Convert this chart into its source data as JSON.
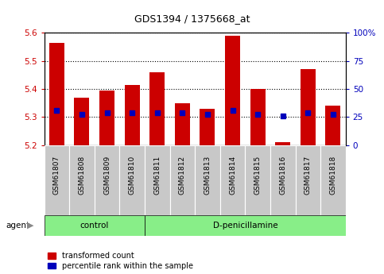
{
  "title": "GDS1394 / 1375668_at",
  "categories": [
    "GSM61807",
    "GSM61808",
    "GSM61809",
    "GSM61810",
    "GSM61811",
    "GSM61812",
    "GSM61813",
    "GSM61814",
    "GSM61815",
    "GSM61816",
    "GSM61817",
    "GSM61818"
  ],
  "red_values": [
    5.565,
    5.37,
    5.395,
    5.415,
    5.46,
    5.35,
    5.33,
    5.59,
    5.4,
    5.21,
    5.47,
    5.34
  ],
  "blue_values": [
    5.325,
    5.31,
    5.315,
    5.315,
    5.315,
    5.315,
    5.31,
    5.325,
    5.31,
    5.305,
    5.315,
    5.31
  ],
  "ymin": 5.2,
  "ymax": 5.6,
  "y2min": 0,
  "y2max": 100,
  "yticks": [
    5.2,
    5.3,
    5.4,
    5.5,
    5.6
  ],
  "y2ticks": [
    0,
    25,
    50,
    75,
    100
  ],
  "y2tick_labels": [
    "0",
    "25",
    "50",
    "75",
    "100%"
  ],
  "bar_base": 5.2,
  "control_count": 4,
  "control_label": "control",
  "treatment_label": "D-penicillamine",
  "agent_label": "agent",
  "legend_red": "transformed count",
  "legend_blue": "percentile rank within the sample",
  "red_color": "#cc0000",
  "blue_color": "#0000bb",
  "bar_width": 0.6,
  "tick_bg_color": "#c8c8c8",
  "control_bg": "#88ee88",
  "treatment_bg": "#88ee88",
  "grid_color": "black",
  "fig_bg": "#ffffff"
}
